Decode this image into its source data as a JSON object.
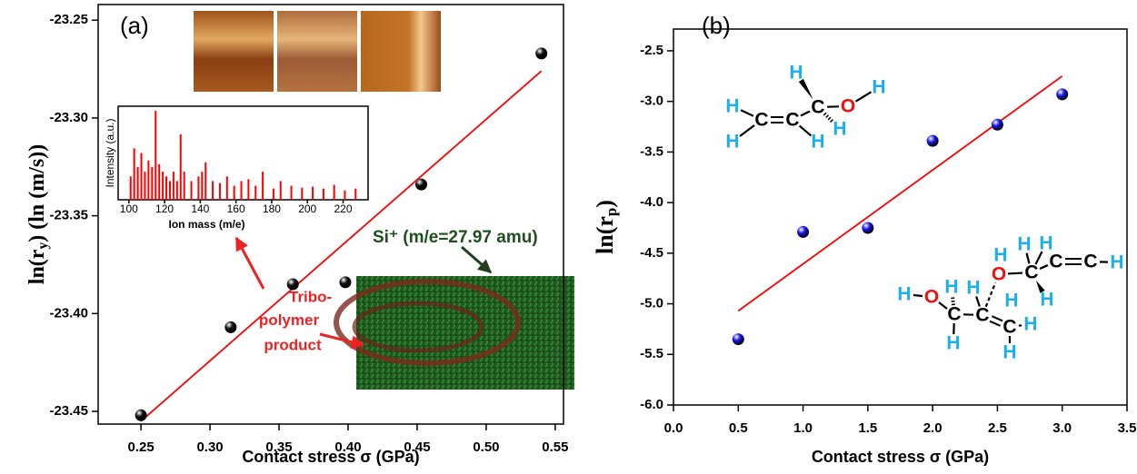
{
  "chart_data": [
    {
      "type": "scatter",
      "panel_label": "(a)",
      "xlabel": "Contact stress σ (GPa)",
      "ylabel": {
        "main": "ln(r",
        "sub": "y",
        "tail": ") (ln (m/s))"
      },
      "x": [
        0.25,
        0.315,
        0.36,
        0.398,
        0.453,
        0.54
      ],
      "values": [
        -23.452,
        -23.407,
        -23.385,
        -23.384,
        -23.334,
        -23.267
      ],
      "color": "#111111",
      "fit": {
        "x": [
          0.25,
          0.54
        ],
        "values": [
          -23.455,
          -23.276
        ],
        "color": "#ff0000"
      },
      "xlim": [
        0.219,
        0.556
      ],
      "ylim": [
        -23.4565,
        -23.242
      ],
      "xticks": [
        0.25,
        {
          "value": 0.3,
          "label": "0.30"
        },
        0.35,
        {
          "value": 0.4,
          "label": "0.40"
        },
        0.45,
        {
          "value": 0.5,
          "label": "0.50"
        },
        0.55
      ],
      "yticks": [
        -23.25,
        {
          "value": -23.3,
          "label": "-23.30"
        },
        -23.35,
        {
          "value": -23.4,
          "label": "-23.40"
        },
        -23.45
      ]
    },
    {
      "type": "bar",
      "xlabel": "Ion mass (m/e)",
      "ylabel": "Intensity (a.u.)",
      "color": "#ff0000",
      "x": [
        101,
        103,
        105,
        107,
        109,
        111,
        113,
        115,
        117,
        119,
        121,
        123,
        125,
        127,
        129,
        131,
        135,
        139,
        141,
        143,
        147,
        151,
        155,
        159,
        163,
        167,
        171,
        175,
        181,
        185,
        191,
        197,
        203,
        209,
        215,
        221,
        227
      ],
      "values": [
        0.25,
        0.55,
        0.35,
        0.5,
        0.3,
        0.42,
        0.35,
        0.95,
        0.38,
        0.3,
        0.25,
        0.2,
        0.3,
        0.2,
        0.7,
        0.3,
        0.2,
        0.25,
        0.3,
        0.4,
        0.2,
        0.18,
        0.25,
        0.15,
        0.2,
        0.22,
        0.15,
        0.3,
        0.12,
        0.2,
        0.15,
        0.13,
        0.14,
        0.12,
        0.16,
        0.1,
        0.12
      ],
      "xlim": [
        94,
        234
      ],
      "ylim": [
        0,
        1
      ],
      "xticks": [
        100,
        120,
        140,
        160,
        180,
        200,
        220
      ]
    },
    {
      "type": "scatter",
      "panel_label": "(b)",
      "xlabel": "Contact stress σ (GPa)",
      "ylabel": {
        "main": "ln(r",
        "sub": "p",
        "tail": ")"
      },
      "x": [
        0.5,
        1.0,
        1.5,
        2.0,
        2.5,
        3.0
      ],
      "values": [
        -5.35,
        -4.29,
        -4.25,
        -3.39,
        -3.23,
        -2.93
      ],
      "color": "#1a1aee",
      "fit": {
        "x": [
          0.5,
          3.0
        ],
        "values": [
          -5.07,
          -2.75
        ],
        "color": "#ff0000"
      },
      "xlim": [
        0,
        3.5
      ],
      "ylim": [
        -6.0,
        -2.285
      ],
      "xticks": [
        {
          "value": 0,
          "label": "0.0"
        },
        0.5,
        {
          "value": 1,
          "label": "1.0"
        },
        1.5,
        {
          "value": 2,
          "label": "2.0"
        },
        2.5,
        {
          "value": 3,
          "label": "3.0"
        },
        3.5
      ],
      "yticks": [
        -2.5,
        {
          "value": -3,
          "label": "-3.0"
        },
        -3.5,
        {
          "value": -4,
          "label": "-4.0"
        },
        -4.5,
        {
          "value": -5,
          "label": "-5.0"
        },
        -5.5,
        {
          "value": -6,
          "label": "-6.0"
        }
      ]
    }
  ],
  "annotations": {
    "tribo": [
      "Tribo-",
      "polymer",
      "product"
    ],
    "si": "Si⁺ (m/e=27.97 amu)"
  },
  "molecules": [
    {
      "atoms": [
        "H",
        "C",
        "O",
        "H",
        "H",
        "C",
        "C",
        "H",
        "H",
        "H"
      ]
    },
    {
      "atoms": [
        "H",
        "O",
        "H",
        "C",
        "H",
        "H",
        "H",
        "C",
        "C",
        "H",
        "H",
        "O",
        "H",
        "H",
        "C",
        "C",
        "C",
        "H",
        "H",
        "H"
      ]
    }
  ]
}
